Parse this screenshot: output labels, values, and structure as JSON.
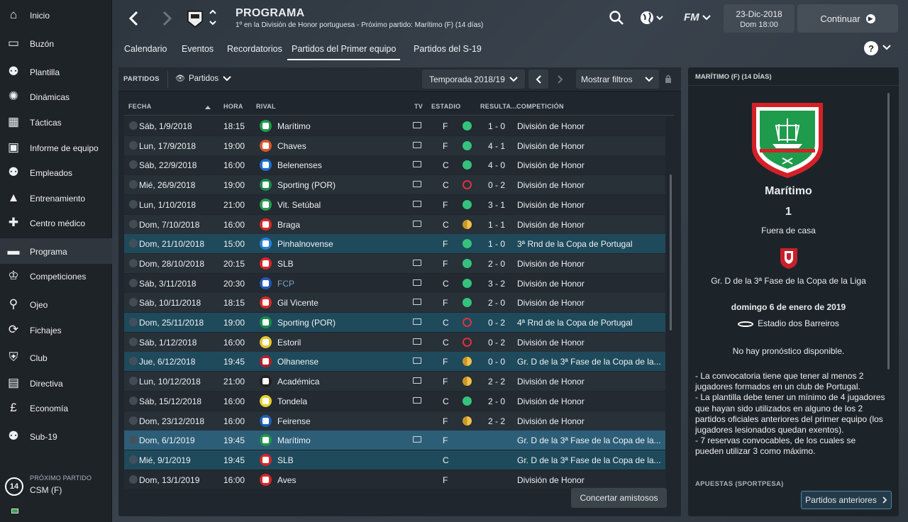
{
  "sidebar": {
    "items": [
      {
        "label": "Inicio",
        "icon": "home-icon"
      },
      {
        "label": "Buzón",
        "icon": "inbox-icon"
      },
      {
        "label": "Plantilla",
        "icon": "squad-icon"
      },
      {
        "label": "Dinámicas",
        "icon": "dynamics-icon"
      },
      {
        "label": "Tácticas",
        "icon": "tactics-icon"
      },
      {
        "label": "Informe de equipo",
        "icon": "report-icon"
      },
      {
        "label": "Empleados",
        "icon": "staff-icon"
      },
      {
        "label": "Entrenamiento",
        "icon": "training-icon"
      },
      {
        "label": "Centro médico",
        "icon": "medical-icon"
      },
      {
        "label": "Programa",
        "icon": "calendar-icon"
      },
      {
        "label": "Competiciones",
        "icon": "trophy-icon"
      },
      {
        "label": "Ojeo",
        "icon": "scouting-icon"
      },
      {
        "label": "Fichajes",
        "icon": "transfers-icon"
      },
      {
        "label": "Club",
        "icon": "club-icon"
      },
      {
        "label": "Directiva",
        "icon": "board-icon"
      },
      {
        "label": "Economía",
        "icon": "finance-icon"
      },
      {
        "label": "Sub-19",
        "icon": "u19-icon"
      }
    ],
    "next_match": {
      "label": "PRÓXIMO PARTIDO",
      "days": "14",
      "opponent": "CSM (F)"
    }
  },
  "header": {
    "title": "PROGRAMA",
    "subtitle": "1º en la División de Honor portuguesa - Próximo partido: Marítimo (F) (14 días)",
    "date": "23-Dic-2018",
    "time": "Dom 18:00",
    "continue_label": "Continuar",
    "brand": "FM"
  },
  "tabs": [
    "Calendario",
    "Eventos",
    "Recordatorios",
    "Partidos del Primer equipo",
    "Partidos del S-19"
  ],
  "toolbar": {
    "section": "PARTIDOS",
    "view": "Partidos",
    "season": "Temporada 2018/19",
    "filters": "Mostrar filtros"
  },
  "table": {
    "headers": {
      "date": "FECHA",
      "time": "HORA",
      "rival": "RIVAL",
      "tv": "TV",
      "stadium": "ESTADIO",
      "result": "RESULTA...",
      "competition": "COMPETICIÓN"
    },
    "rows": [
      {
        "date": "Sáb, 1/9/2018",
        "time": "18:15",
        "rival": "Marítimo",
        "tv": true,
        "venue": "F",
        "outcome": "W",
        "score": "1 - 0",
        "competition": "División de Honor",
        "color": "#1f9a4a"
      },
      {
        "date": "Lun, 17/9/2018",
        "time": "19:00",
        "rival": "Chaves",
        "tv": true,
        "venue": "F",
        "outcome": "W",
        "score": "4 - 1",
        "competition": "División de Honor",
        "color": "#d9552a"
      },
      {
        "date": "Sáb, 22/9/2018",
        "time": "16:00",
        "rival": "Belenenses",
        "tv": true,
        "venue": "C",
        "outcome": "W",
        "score": "4 - 0",
        "competition": "División de Honor",
        "color": "#1d6fd1"
      },
      {
        "date": "Mié, 26/9/2018",
        "time": "19:00",
        "rival": "Sporting (POR)",
        "tv": true,
        "venue": "C",
        "outcome": "L",
        "score": "0 - 2",
        "competition": "División de Honor",
        "color": "#1c8a4a"
      },
      {
        "date": "Lun, 1/10/2018",
        "time": "21:00",
        "rival": "Vit. Setúbal",
        "tv": true,
        "venue": "F",
        "outcome": "W",
        "score": "3 - 1",
        "competition": "División de Honor",
        "color": "#2a9a54"
      },
      {
        "date": "Dom, 7/10/2018",
        "time": "16:00",
        "rival": "Braga",
        "tv": true,
        "venue": "C",
        "outcome": "D",
        "score": "1 - 1",
        "competition": "División de Honor",
        "color": "#d82a2a"
      },
      {
        "date": "Dom, 21/10/2018",
        "time": "15:00",
        "rival": "Pinhalnovense",
        "tv": false,
        "venue": "F",
        "outcome": "W",
        "score": "1 - 0",
        "competition": "3ª Rnd de la Copa de Portugal",
        "color": "#2b7fd4",
        "cup": true
      },
      {
        "date": "Dom, 28/10/2018",
        "time": "20:15",
        "rival": "SLB",
        "tv": true,
        "venue": "F",
        "outcome": "W",
        "score": "2 - 0",
        "competition": "División de Honor",
        "color": "#d8262c"
      },
      {
        "date": "Sáb, 3/11/2018",
        "time": "20:30",
        "rival": "FCP",
        "tv": true,
        "venue": "C",
        "outcome": "W",
        "score": "3 - 2",
        "competition": "División de Honor",
        "color": "#2458b8",
        "dim": true
      },
      {
        "date": "Sáb, 10/11/2018",
        "time": "18:15",
        "rival": "Gil Vicente",
        "tv": true,
        "venue": "F",
        "outcome": "W",
        "score": "2 - 0",
        "competition": "División de Honor",
        "color": "#d42a2a"
      },
      {
        "date": "Dom, 25/11/2018",
        "time": "19:00",
        "rival": "Sporting (POR)",
        "tv": true,
        "venue": "C",
        "outcome": "L",
        "score": "0 - 2",
        "competition": "4ª Rnd de la Copa de Portugal",
        "color": "#1c8a4a",
        "cup": true
      },
      {
        "date": "Sáb, 1/12/2018",
        "time": "16:00",
        "rival": "Estoril",
        "tv": true,
        "venue": "C",
        "outcome": "L",
        "score": "0 - 2",
        "competition": "División de Honor",
        "color": "#e2c42a"
      },
      {
        "date": "Jue, 6/12/2018",
        "time": "19:45",
        "rival": "Olhanense",
        "tv": true,
        "venue": "F",
        "outcome": "D",
        "score": "0 - 0",
        "competition": "Gr. D de la 3ª Fase de la Copa de la...",
        "color": "#b8202a",
        "cup": true
      },
      {
        "date": "Lun, 10/12/2018",
        "time": "21:00",
        "rival": "Académica",
        "tv": true,
        "venue": "F",
        "outcome": "D",
        "score": "2 - 2",
        "competition": "División de Honor",
        "color": "#222222"
      },
      {
        "date": "Sáb, 15/12/2018",
        "time": "16:00",
        "rival": "Tondela",
        "tv": true,
        "venue": "C",
        "outcome": "W",
        "score": "2 - 0",
        "competition": "División de Honor",
        "color": "#e8d02a"
      },
      {
        "date": "Dom, 23/12/2018",
        "time": "16:00",
        "rival": "Feirense",
        "tv": false,
        "venue": "F",
        "outcome": "D",
        "score": "2 - 2",
        "competition": "División de Honor",
        "color": "#1d5fb8"
      },
      {
        "date": "Dom, 6/1/2019",
        "time": "19:45",
        "rival": "Marítimo",
        "tv": true,
        "venue": "F",
        "outcome": "",
        "score": "",
        "competition": "Gr. D de la 3ª Fase de la Copa de la...",
        "color": "#1f9a4a",
        "sel": true
      },
      {
        "date": "Mié, 9/1/2019",
        "time": "19:45",
        "rival": "SLB",
        "tv": false,
        "venue": "C",
        "outcome": "",
        "score": "",
        "competition": "Gr. D de la 3ª Fase de la Copa de la...",
        "color": "#d8262c",
        "cup": true
      },
      {
        "date": "Dom, 13/1/2019",
        "time": "16:00",
        "rival": "Aves",
        "tv": false,
        "venue": "F",
        "outcome": "",
        "score": "",
        "competition": "División de Honor",
        "color": "#d8262c"
      }
    ]
  },
  "friendly_button": "Concertar amistosos",
  "detail": {
    "header": "MARÍTIMO (F) (14 DÍAS)",
    "team": "Marítimo",
    "number": "1",
    "venue": "Fuera de casa",
    "competition": "Gr. D de la 3ª Fase de la Copa de la Liga",
    "date": "domingo 6 de enero de 2019",
    "stadium": "Estadio dos Barreiros",
    "forecast": "No hay pronóstico disponible.",
    "rules": "- La convocatoria tiene que tener al menos 2 jugadores formados en un club de Portugal.\n- La plantilla debe tener un mínimo de 4 jugadores que hayan sido utilizados en alguno de los 2 partidos oficiales anteriores del primer equipo (los jugadores lesionados quedan exentos).\n- 7 reservas convocables, de los cuales se pueden utilizar 3 como máximo.",
    "bets_label": "APUESTAS (SPORTPESA)",
    "prev_matches": "Partidos anteriores"
  }
}
